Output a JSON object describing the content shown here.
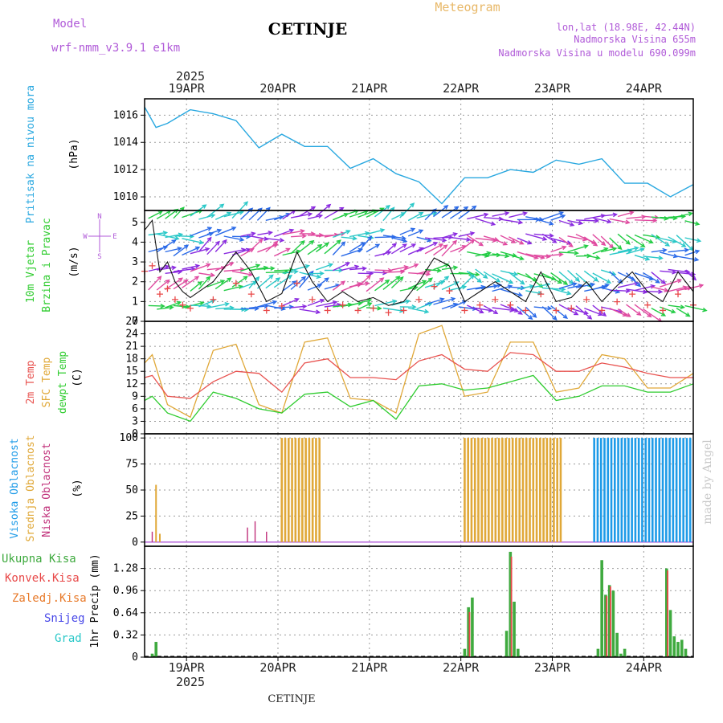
{
  "header": {
    "model_label": "Model",
    "model_name": "wrf-nmm_v3.9.1  e1km",
    "station": "CETINJE",
    "product": "Meteogram",
    "lonlat": "lon,lat (18.98E, 42.44N)",
    "elevation": "Nadmorska Visina 655m",
    "model_elevation": "Nadmorska Visina u modelu 690.099m",
    "watermark": "made by Angel",
    "footer_station": "CETINJE",
    "year": "2025"
  },
  "colors": {
    "pressure": "#29a8e0",
    "temp2m": "#e8524f",
    "sfc_temp": "#e0a838",
    "dewpt": "#2fcc2f",
    "high_cloud": "#1e9be8",
    "mid_cloud": "#e0a838",
    "low_cloud": "#c0307a",
    "total_precip": "#3faa3f",
    "conv_precip": "#e84848",
    "frozen_precip": "#e87a2a",
    "snow": "#4848e8",
    "hail": "#2ac8c8",
    "purple_text": "#b05ad8",
    "title_orange": "#e8b868",
    "arrow_colors": [
      "#22cc44",
      "#2ac8c8",
      "#2a6ae8",
      "#8a2ae0",
      "#e04aa0",
      "#e8c82a"
    ]
  },
  "axis": {
    "dates": [
      "19APR",
      "20APR",
      "21APR",
      "22APR",
      "23APR",
      "24APR"
    ],
    "start_hour": 13,
    "hours": 84
  },
  "panels": {
    "pressure": {
      "ylabel": [
        "Pritisak na nivou mora",
        "(hPa)"
      ],
      "ylim": [
        1009,
        1017.2
      ],
      "ticks": [
        "1010",
        "1012",
        "1014",
        "1016"
      ]
    },
    "wind": {
      "ylabel": [
        "10m Vjetar",
        "Brzina i Pravac",
        "(m/s)"
      ],
      "compass": [
        "N",
        "W",
        "E",
        "S"
      ],
      "ylim": [
        0,
        5.6
      ],
      "ticks": [
        "0",
        "1",
        "2",
        "3",
        "4",
        "5"
      ]
    },
    "temp": {
      "ylabel": [
        "2m Temp",
        "SFC Temp",
        "dewpt Temp",
        "(C)"
      ],
      "ylim": [
        0,
        27
      ],
      "ticks": [
        "0",
        "3",
        "6",
        "9",
        "12",
        "15",
        "18",
        "21",
        "24",
        "27"
      ]
    },
    "cloud": {
      "ylabel": [
        "Visoka Oblacnost",
        "Srednja Oblacnost",
        "Niska Oblacnost",
        "(%)"
      ],
      "ylim": [
        -4,
        104
      ],
      "ticks": [
        "0",
        "25",
        "50",
        "75",
        "100"
      ]
    },
    "precip": {
      "ylabel": [
        "1hr Precip (mm)"
      ],
      "legend": [
        "Ukupna Kisa",
        "Konvek.Kisa",
        "Zaledj.Kisa",
        "Snijeg",
        "Grad"
      ],
      "ylim": [
        0,
        1.6
      ],
      "ticks": [
        "0",
        "0.32",
        "0.64",
        "0.96",
        "1.28"
      ]
    }
  },
  "chart_data": {
    "type": "line",
    "time_axis": "hours since 2025-04-18 13:00 UTC",
    "pressure_hPa": {
      "x": [
        0,
        3,
        6,
        12,
        18,
        24,
        30,
        36,
        42,
        48,
        54,
        60,
        66,
        72,
        78,
        84,
        90,
        96,
        102,
        108,
        114,
        120,
        126,
        132,
        138,
        144
      ],
      "y": [
        1016.6,
        1015.1,
        1015.4,
        1016.4,
        1016.1,
        1015.6,
        1013.6,
        1014.6,
        1013.7,
        1013.7,
        1012.1,
        1012.8,
        1011.7,
        1011.1,
        1009.5,
        1011.4,
        1011.4,
        1012.0,
        1011.8,
        1012.7,
        1012.4,
        1012.8,
        1011.0,
        1011.0,
        1010.0,
        1010.9
      ]
    },
    "wind_speed_ms": {
      "x": [
        0,
        2,
        4,
        6,
        8,
        10,
        12,
        18,
        24,
        28,
        32,
        36,
        40,
        44,
        48,
        52,
        56,
        60,
        64,
        68,
        72,
        76,
        80,
        84,
        88,
        92,
        96,
        100,
        104,
        108,
        112,
        116,
        120,
        124,
        128,
        132,
        136,
        140,
        144
      ],
      "y": [
        4.6,
        5.1,
        2.5,
        3.0,
        2.0,
        1.5,
        1.2,
        2.0,
        3.5,
        2.5,
        1.0,
        1.4,
        3.5,
        2.0,
        1.0,
        1.5,
        1.0,
        1.2,
        0.8,
        1.0,
        2.0,
        3.2,
        2.8,
        1.0,
        1.5,
        2.0,
        1.5,
        1.0,
        2.5,
        1.0,
        1.2,
        2.0,
        1.0,
        1.8,
        2.5,
        1.5,
        1.0,
        2.5,
        1.5
      ]
    },
    "temp2m_C": {
      "x": [
        0,
        2,
        6,
        12,
        18,
        24,
        30,
        36,
        42,
        48,
        54,
        60,
        66,
        72,
        78,
        84,
        90,
        96,
        102,
        108,
        114,
        120,
        126,
        132,
        138,
        144
      ],
      "y": [
        13.5,
        14.0,
        9.0,
        8.5,
        12.5,
        15.0,
        14.5,
        10.0,
        17.0,
        18.0,
        13.5,
        13.5,
        13.0,
        17.5,
        19.0,
        15.5,
        15.0,
        19.5,
        19.0,
        15.0,
        15.0,
        17.0,
        16.0,
        14.5,
        13.5,
        13.5
      ]
    },
    "sfc_temp_C": {
      "x": [
        0,
        2,
        6,
        12,
        18,
        24,
        30,
        36,
        42,
        48,
        54,
        60,
        66,
        72,
        78,
        84,
        90,
        96,
        102,
        108,
        114,
        120,
        126,
        132,
        138,
        144
      ],
      "y": [
        17.0,
        19.0,
        7.0,
        4.0,
        20.0,
        21.5,
        7.0,
        5.0,
        22.0,
        23.0,
        8.5,
        8.0,
        5.0,
        24.0,
        26.0,
        9.0,
        10.0,
        22.0,
        22.0,
        10.0,
        11.0,
        19.0,
        18.0,
        11.0,
        11.0,
        14.5
      ]
    },
    "dewpt_C": {
      "x": [
        0,
        2,
        6,
        12,
        18,
        24,
        30,
        36,
        42,
        48,
        54,
        60,
        66,
        72,
        78,
        84,
        90,
        96,
        102,
        108,
        114,
        120,
        126,
        132,
        138,
        144
      ],
      "y": [
        8.0,
        9.0,
        5.0,
        3.0,
        10.0,
        8.5,
        6.0,
        5.0,
        9.5,
        10.0,
        6.5,
        8.0,
        3.5,
        11.5,
        12.0,
        10.5,
        11.0,
        12.5,
        14.0,
        8.0,
        9.0,
        11.5,
        11.5,
        10.0,
        10.0,
        12.0
      ]
    },
    "cloud_pct": {
      "high_full_ranges": [
        [
          36,
          46
        ],
        [
          84,
          110
        ],
        [
          118,
          144
        ]
      ],
      "low_spikes": [
        [
          2,
          10
        ],
        [
          27,
          14
        ],
        [
          29,
          20
        ],
        [
          32,
          10
        ]
      ],
      "mid_spikes": [
        [
          3,
          55
        ],
        [
          4,
          8
        ]
      ]
    },
    "precip_mm": {
      "total": [
        [
          2,
          0.05
        ],
        [
          3,
          0.22
        ],
        [
          84,
          0.12
        ],
        [
          85,
          0.72
        ],
        [
          86,
          0.86
        ],
        [
          95,
          0.38
        ],
        [
          96,
          1.52
        ],
        [
          97,
          0.8
        ],
        [
          98,
          0.12
        ],
        [
          119,
          0.12
        ],
        [
          120,
          1.4
        ],
        [
          121,
          0.9
        ],
        [
          122,
          1.04
        ],
        [
          123,
          0.96
        ],
        [
          124,
          0.35
        ],
        [
          125,
          0.05
        ],
        [
          126,
          0.12
        ],
        [
          137,
          1.28
        ],
        [
          138,
          0.68
        ],
        [
          139,
          0.3
        ],
        [
          140,
          0.22
        ],
        [
          141,
          0.25
        ],
        [
          142,
          0.12
        ]
      ],
      "convective": [
        [
          85,
          0.65
        ],
        [
          96,
          1.45
        ],
        [
          121,
          0.88
        ],
        [
          122,
          1.02
        ],
        [
          137,
          1.25
        ]
      ]
    }
  }
}
